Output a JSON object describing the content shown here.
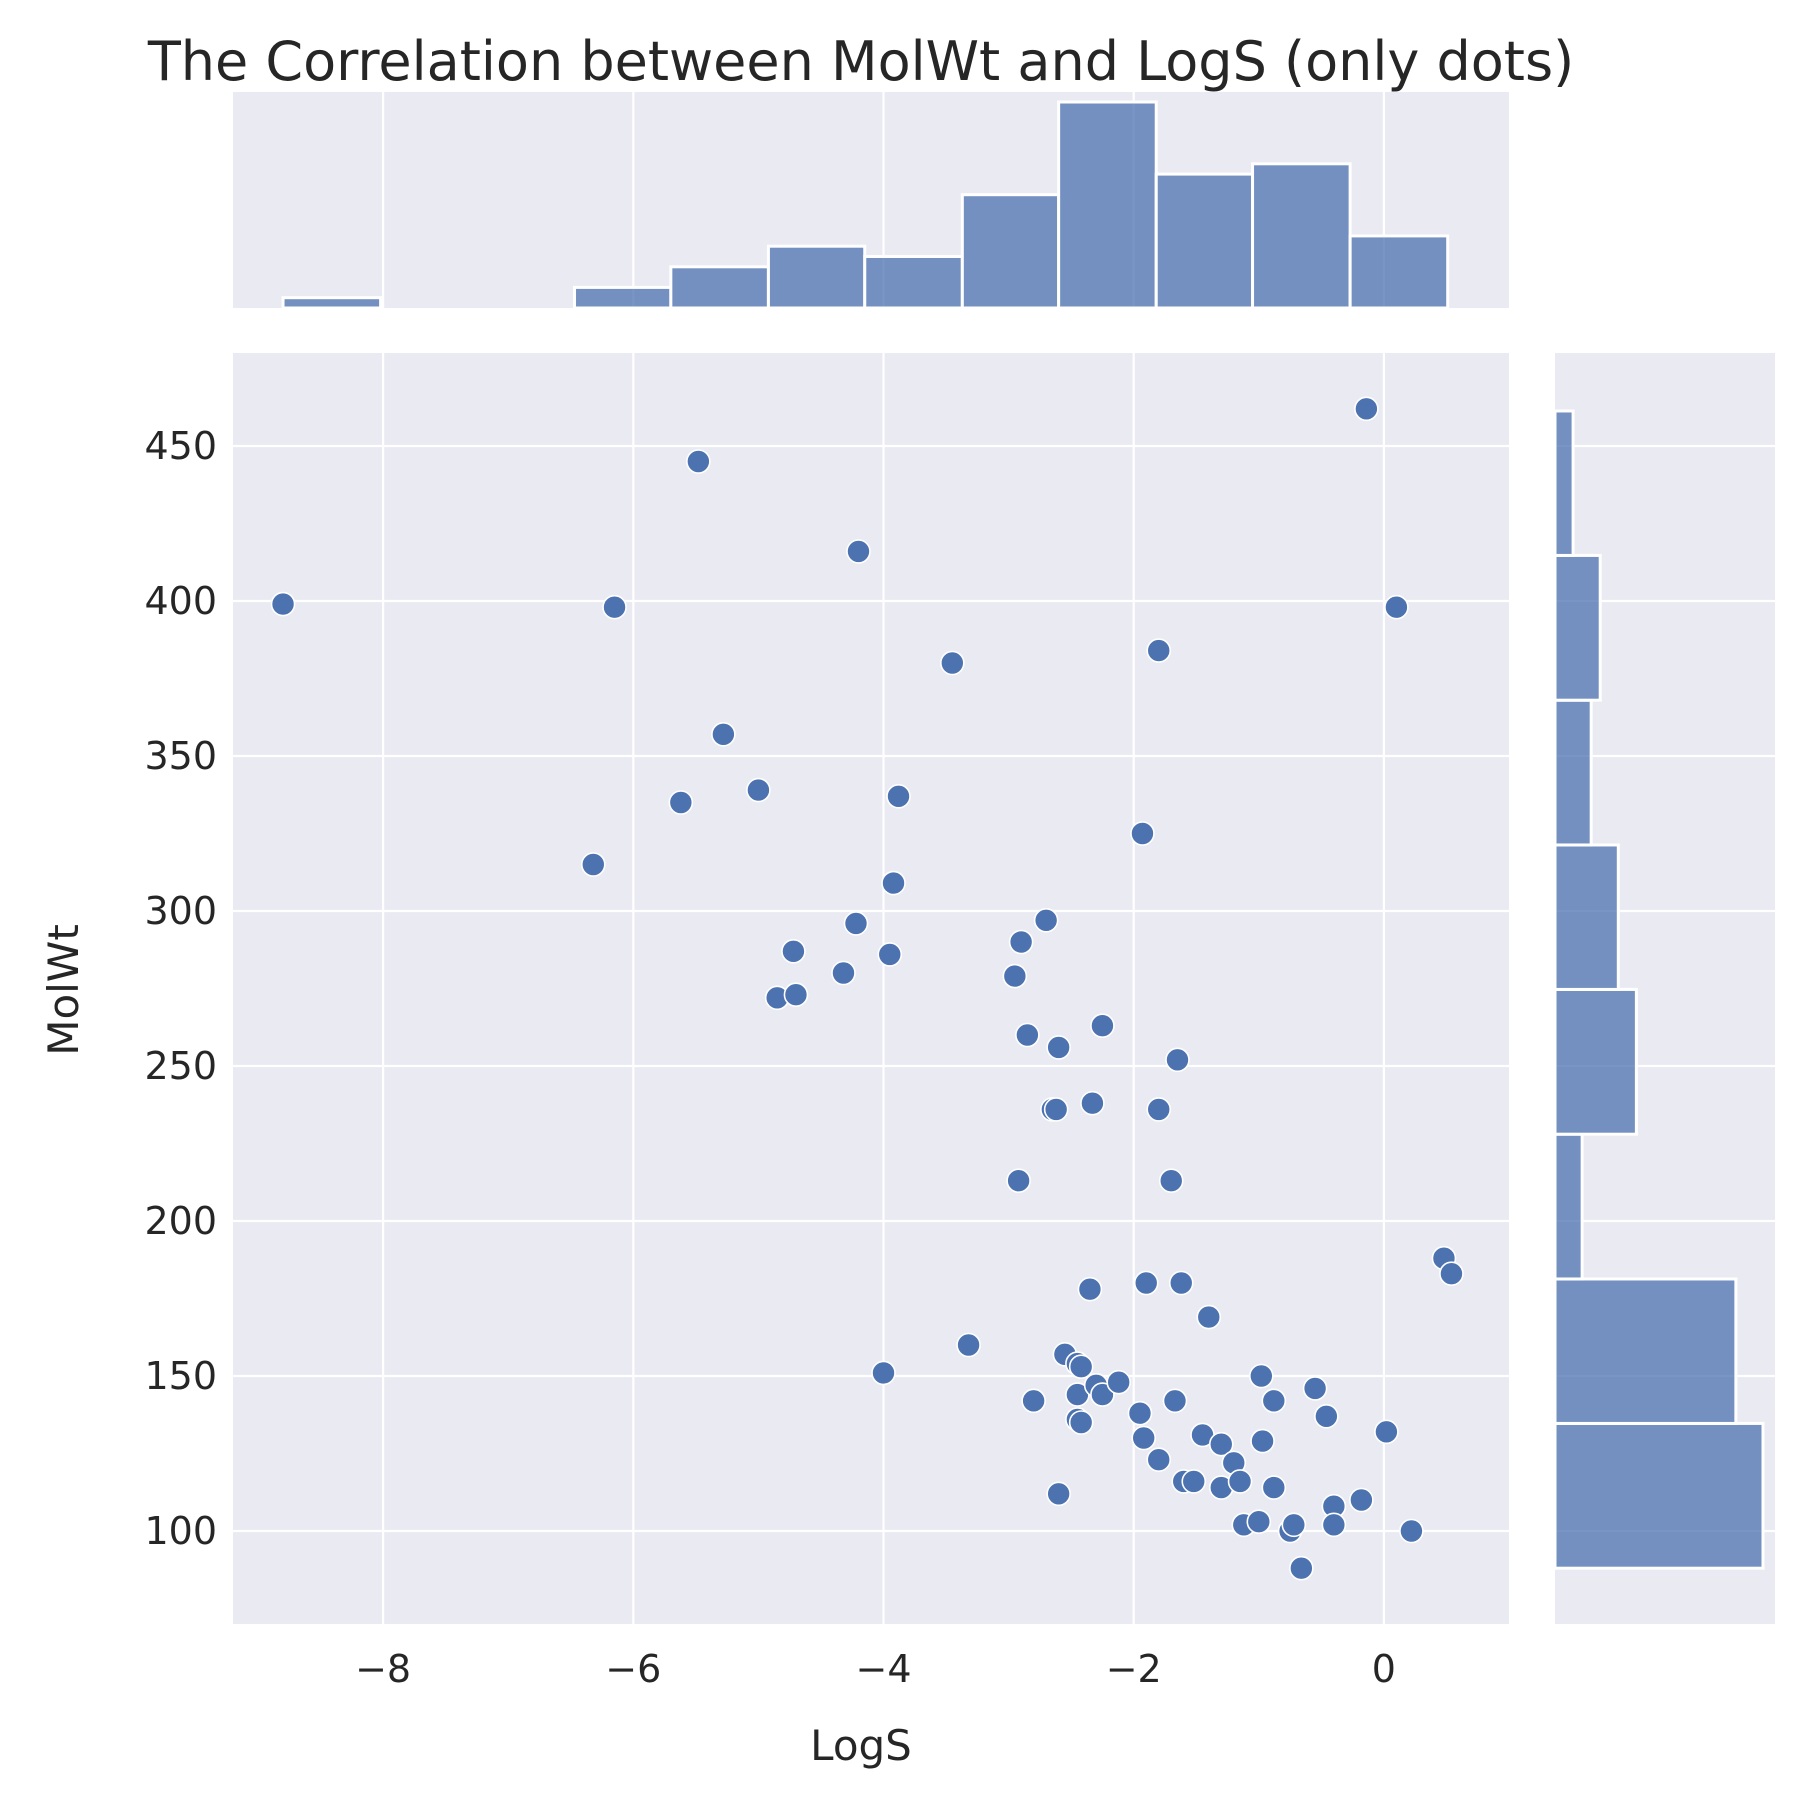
{
  "chart_data": {
    "type": "scatter",
    "title": "The Correlation between MolWt and LogS (only dots)",
    "xlabel": "LogS",
    "ylabel": "MolWt",
    "xlim": [
      -9.2,
      1.0
    ],
    "ylim": [
      70,
      480
    ],
    "xticks": [
      -8,
      -6,
      -4,
      -2,
      0
    ],
    "xtick_labels": [
      "−8",
      "−6",
      "−4",
      "−2",
      "0"
    ],
    "yticks": [
      100,
      150,
      200,
      250,
      300,
      350,
      400,
      450
    ],
    "ytick_labels": [
      "100",
      "150",
      "200",
      "250",
      "300",
      "350",
      "400",
      "450"
    ],
    "grid": true,
    "series_color": "#4c72b0",
    "background": "#eaeaf2",
    "points": [
      [
        -8.8,
        399
      ],
      [
        -6.15,
        398
      ],
      [
        -6.32,
        315
      ],
      [
        -5.48,
        445
      ],
      [
        -5.28,
        357
      ],
      [
        -5.62,
        335
      ],
      [
        -5.0,
        339
      ],
      [
        -4.72,
        287
      ],
      [
        -4.85,
        272
      ],
      [
        -4.7,
        273
      ],
      [
        -4.32,
        280
      ],
      [
        -4.22,
        296
      ],
      [
        -4.2,
        416
      ],
      [
        -3.95,
        286
      ],
      [
        -3.92,
        309
      ],
      [
        -3.88,
        337
      ],
      [
        -3.45,
        380
      ],
      [
        -3.32,
        160
      ],
      [
        -4.0,
        151
      ],
      [
        -2.95,
        279
      ],
      [
        -2.9,
        290
      ],
      [
        -2.92,
        213
      ],
      [
        -2.85,
        260
      ],
      [
        -2.8,
        142
      ],
      [
        -2.7,
        297
      ],
      [
        -2.65,
        236
      ],
      [
        -2.62,
        236
      ],
      [
        -2.6,
        256
      ],
      [
        -2.6,
        112
      ],
      [
        -2.55,
        157
      ],
      [
        -2.45,
        154
      ],
      [
        -2.42,
        153
      ],
      [
        -2.45,
        144
      ],
      [
        -2.45,
        136
      ],
      [
        -2.42,
        135
      ],
      [
        -2.35,
        178
      ],
      [
        -2.33,
        238
      ],
      [
        -2.3,
        147
      ],
      [
        -2.25,
        263
      ],
      [
        -2.25,
        144
      ],
      [
        -2.12,
        148
      ],
      [
        -1.95,
        138
      ],
      [
        -1.93,
        325
      ],
      [
        -1.92,
        130
      ],
      [
        -1.9,
        180
      ],
      [
        -1.8,
        384
      ],
      [
        -1.8,
        236
      ],
      [
        -1.8,
        123
      ],
      [
        -1.7,
        213
      ],
      [
        -1.67,
        142
      ],
      [
        -1.65,
        252
      ],
      [
        -1.62,
        180
      ],
      [
        -1.6,
        116
      ],
      [
        -1.52,
        116
      ],
      [
        -1.45,
        131
      ],
      [
        -1.4,
        169
      ],
      [
        -1.3,
        128
      ],
      [
        -1.3,
        114
      ],
      [
        -1.2,
        122
      ],
      [
        -1.15,
        116
      ],
      [
        -1.12,
        102
      ],
      [
        -1.0,
        103
      ],
      [
        -0.98,
        150
      ],
      [
        -0.97,
        129
      ],
      [
        -0.88,
        142
      ],
      [
        -0.88,
        114
      ],
      [
        -0.75,
        100
      ],
      [
        -0.72,
        102
      ],
      [
        -0.66,
        88
      ],
      [
        -0.55,
        146
      ],
      [
        -0.46,
        137
      ],
      [
        -0.4,
        108
      ],
      [
        -0.4,
        102
      ],
      [
        -0.18,
        110
      ],
      [
        -0.14,
        462
      ],
      [
        0.02,
        132
      ],
      [
        0.1,
        398
      ],
      [
        0.22,
        100
      ],
      [
        0.48,
        188
      ],
      [
        0.54,
        183
      ]
    ],
    "x_histogram": {
      "bin_edges": [
        -8.8,
        -8.02,
        -7.25,
        -6.47,
        -5.7,
        -4.92,
        -4.15,
        -3.37,
        -2.6,
        -1.82,
        -1.05,
        -0.27,
        0.51
      ],
      "counts": [
        1,
        0,
        0,
        2,
        4,
        6,
        5,
        11,
        20,
        13,
        14,
        7
      ]
    },
    "y_histogram": {
      "bin_edges": [
        88,
        134.7,
        181.3,
        228,
        274.7,
        321.3,
        368,
        414.7,
        461.3
      ],
      "counts": [
        23,
        20,
        3,
        9,
        7,
        4,
        5,
        2
      ]
    }
  }
}
